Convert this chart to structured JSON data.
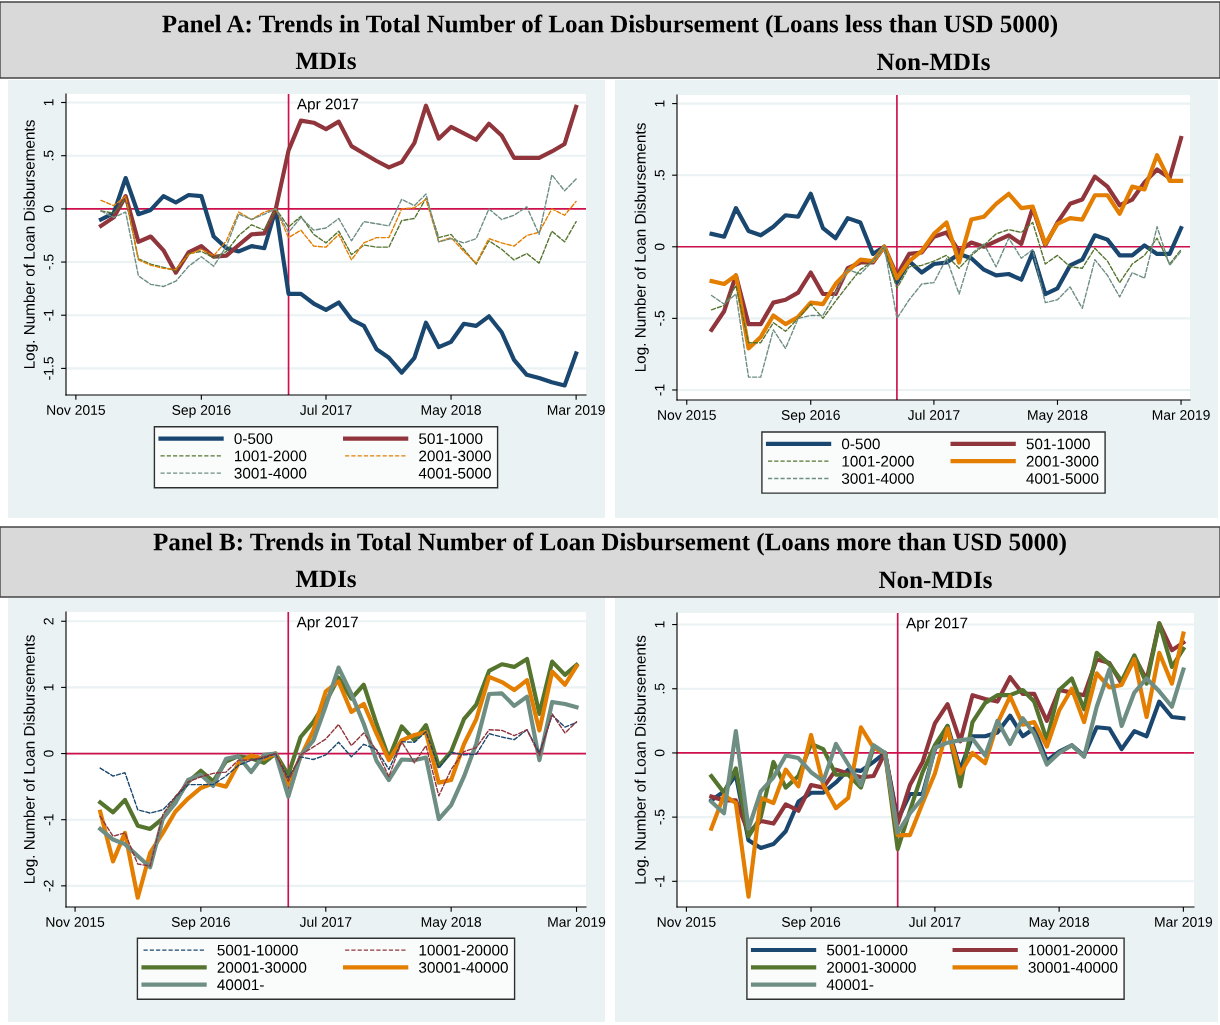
{
  "chart_data": [
    {
      "type": "line",
      "title": "MDIs",
      "ylabel": "Log. Number of Loan Disbursements",
      "annotations": [
        "Panel A: Trends in Total Number of Loan Disbursement (Loans less than USD 5000)"
      ],
      "x": [
        "2016-01",
        "2016-02",
        "2016-03",
        "2016-04",
        "2016-05",
        "2016-06",
        "2016-07",
        "2016-08",
        "2016-09",
        "2016-10",
        "2016-11",
        "2016-12",
        "2017-01",
        "2017-02",
        "2017-03",
        "2017-04",
        "2017-05",
        "2017-06",
        "2017-07",
        "2017-08",
        "2017-09",
        "2017-10",
        "2017-11",
        "2017-12",
        "2018-01",
        "2018-02",
        "2018-03",
        "2018-04",
        "2018-05",
        "2018-06",
        "2018-07",
        "2018-08",
        "2018-09",
        "2018-10",
        "2018-11",
        "2018-12",
        "2019-01",
        "2019-02",
        "2019-03"
      ],
      "xlim": [
        "2015-10-08",
        "2019-03-25"
      ],
      "xticks": [
        {
          "value": "2015-11",
          "label": "Nov 2015"
        },
        {
          "value": "2016-09",
          "label": "Sep 2016"
        },
        {
          "value": "2017-07",
          "label": "Jul 2017"
        },
        {
          "value": "2018-05",
          "label": "May 2018"
        },
        {
          "value": "2019-03",
          "label": "Mar 2019"
        }
      ],
      "ylim": [
        -1.75,
        1.08
      ],
      "yticks": [
        {
          "value": -1.5,
          "label": "-1.5"
        },
        {
          "value": -1,
          "label": "-1"
        },
        {
          "value": -0.5,
          "label": "-.5"
        },
        {
          "value": 0,
          "label": "0"
        },
        {
          "value": 0.5,
          "label": ".5"
        },
        {
          "value": 1,
          "label": "1"
        }
      ],
      "ref_lines": [
        {
          "axis": "y",
          "value": 0,
          "label": null,
          "color": "#d0104c"
        },
        {
          "axis": "x",
          "value": "2017-04",
          "label": "Apr 2017",
          "color": "#d0104c"
        }
      ],
      "grid": "y",
      "legend": "bottom",
      "series": [
        {
          "name": "0-500",
          "color": "#1a476f",
          "line_style": "solid",
          "values": [
            -0.1,
            -0.04,
            0.29,
            -0.05,
            -0.01,
            0.12,
            0.06,
            0.13,
            0.12,
            -0.26,
            -0.37,
            -0.4,
            -0.35,
            -0.37,
            0,
            -0.8,
            -0.8,
            -0.89,
            -0.95,
            -0.88,
            -1.04,
            -1.1,
            -1.32,
            -1.4,
            -1.54,
            -1.4,
            -1.07,
            -1.3,
            -1.25,
            -1.08,
            -1.1,
            -1.01,
            -1.16,
            -1.42,
            -1.56,
            -1.59,
            -1.63,
            -1.66,
            -1.36
          ]
        },
        {
          "name": "501-1000",
          "color": "#90353b",
          "line_style": "solid",
          "values": [
            -0.16,
            -0.08,
            0.12,
            -0.31,
            -0.26,
            -0.39,
            -0.6,
            -0.41,
            -0.35,
            -0.45,
            -0.44,
            -0.34,
            -0.24,
            -0.23,
            0,
            0.55,
            0.83,
            0.81,
            0.75,
            0.82,
            0.59,
            0.52,
            0.45,
            0.39,
            0.44,
            0.62,
            0.97,
            0.66,
            0.77,
            0.71,
            0.65,
            0.8,
            0.69,
            0.48,
            0.48,
            0.48,
            0.54,
            0.61,
            0.96
          ]
        },
        {
          "name": "1001-2000",
          "color": "#55752f",
          "line_style": "dashed",
          "values": [
            -0.02,
            -0.04,
            0.1,
            -0.47,
            -0.52,
            -0.55,
            -0.58,
            -0.42,
            -0.4,
            -0.46,
            -0.4,
            -0.25,
            -0.15,
            -0.2,
            0,
            -0.17,
            -0.07,
            -0.24,
            -0.32,
            -0.21,
            -0.43,
            -0.34,
            -0.36,
            -0.36,
            -0.11,
            -0.09,
            0.1,
            -0.27,
            -0.24,
            -0.38,
            -0.52,
            -0.3,
            -0.38,
            -0.48,
            -0.42,
            -0.51,
            -0.21,
            -0.31,
            -0.12
          ]
        },
        {
          "name": "2001-3000",
          "color": "#e37e00",
          "line_style": "dashed",
          "values": [
            0.08,
            0.03,
            0.12,
            -0.48,
            -0.53,
            -0.56,
            -0.57,
            -0.43,
            -0.38,
            -0.44,
            -0.3,
            -0.03,
            -0.1,
            -0.03,
            0,
            -0.27,
            -0.2,
            -0.35,
            -0.36,
            -0.24,
            -0.48,
            -0.32,
            -0.27,
            -0.27,
            0,
            0.01,
            0.09,
            -0.31,
            -0.27,
            -0.4,
            -0.51,
            -0.28,
            -0.32,
            -0.35,
            -0.25,
            -0.22,
            0,
            -0.06,
            0.07
          ]
        },
        {
          "name": "3001-4000",
          "color": "#6e8e84",
          "line_style": "dashed",
          "values": [
            -0.02,
            -0.08,
            -0.03,
            -0.63,
            -0.71,
            -0.73,
            -0.68,
            -0.54,
            -0.45,
            -0.54,
            -0.35,
            -0.05,
            -0.1,
            -0.05,
            0,
            -0.22,
            -0.08,
            -0.2,
            -0.18,
            -0.09,
            -0.3,
            -0.12,
            -0.14,
            -0.16,
            0.09,
            0.03,
            0.14,
            -0.31,
            -0.28,
            -0.32,
            -0.28,
            0,
            -0.1,
            -0.06,
            0.02,
            -0.24,
            0.32,
            0.17,
            0.28
          ]
        },
        {
          "name": "4001-5000",
          "line_style": "solid",
          "values": [
            null,
            null,
            null,
            null,
            null,
            null,
            null,
            null,
            null,
            null,
            null,
            null,
            null,
            null,
            null,
            null,
            null,
            null,
            null,
            null,
            null,
            null,
            null,
            null,
            null,
            null,
            null,
            null,
            null,
            null,
            null,
            null,
            null,
            null,
            null,
            null,
            null,
            null,
            null
          ]
        }
      ]
    },
    {
      "type": "line",
      "title": "Non-MDIs",
      "ylabel": "Log. Number of Loan Disbursements",
      "x": [
        "2016-01",
        "2016-02",
        "2016-03",
        "2016-04",
        "2016-05",
        "2016-06",
        "2016-07",
        "2016-08",
        "2016-09",
        "2016-10",
        "2016-11",
        "2016-12",
        "2017-01",
        "2017-02",
        "2017-03",
        "2017-04",
        "2017-05",
        "2017-06",
        "2017-07",
        "2017-08",
        "2017-09",
        "2017-10",
        "2017-11",
        "2017-12",
        "2018-01",
        "2018-02",
        "2018-03",
        "2018-04",
        "2018-05",
        "2018-06",
        "2018-07",
        "2018-08",
        "2018-09",
        "2018-10",
        "2018-11",
        "2018-12",
        "2019-01",
        "2019-02",
        "2019-03"
      ],
      "xlim": [
        "2015-10-08",
        "2019-03-23"
      ],
      "xticks": [
        {
          "value": "2015-11",
          "label": "Nov 2015"
        },
        {
          "value": "2016-09",
          "label": "Sep 2016"
        },
        {
          "value": "2017-07",
          "label": "Jul 2017"
        },
        {
          "value": "2018-05",
          "label": "May 2018"
        },
        {
          "value": "2019-03",
          "label": "Mar 2019"
        }
      ],
      "ylim": [
        -1.07,
        1.06
      ],
      "yticks": [
        {
          "value": -1,
          "label": "-1"
        },
        {
          "value": -0.5,
          "label": "-.5"
        },
        {
          "value": 0,
          "label": "0"
        },
        {
          "value": 0.5,
          "label": ".5"
        },
        {
          "value": 1,
          "label": "1"
        }
      ],
      "ref_lines": [
        {
          "axis": "y",
          "value": 0,
          "label": null,
          "color": "#d0104c"
        },
        {
          "axis": "x",
          "value": "2017-04",
          "label": null,
          "color": "#d0104c"
        }
      ],
      "grid": "y",
      "legend": "bottom",
      "series": [
        {
          "name": "0-500",
          "color": "#1a476f",
          "line_style": "solid",
          "values": [
            0.09,
            0.07,
            0.27,
            0.11,
            0.08,
            0.14,
            0.22,
            0.21,
            0.37,
            0.13,
            0.06,
            0.2,
            0.17,
            -0.05,
            0,
            -0.25,
            -0.1,
            -0.18,
            -0.12,
            -0.11,
            -0.05,
            -0.08,
            -0.16,
            -0.2,
            -0.19,
            -0.23,
            -0.04,
            -0.33,
            -0.29,
            -0.13,
            -0.09,
            0.08,
            0.05,
            -0.06,
            -0.06,
            0.01,
            -0.05,
            -0.05,
            0.13
          ]
        },
        {
          "name": "501-1000",
          "color": "#90353b",
          "line_style": "solid",
          "values": [
            -0.58,
            -0.45,
            -0.2,
            -0.54,
            -0.54,
            -0.39,
            -0.37,
            -0.32,
            -0.18,
            -0.33,
            -0.33,
            -0.15,
            -0.11,
            -0.11,
            0,
            -0.2,
            -0.05,
            -0.04,
            0.07,
            0.1,
            -0.03,
            0.03,
            0,
            0.04,
            0.08,
            0.02,
            0.27,
            0.01,
            0.17,
            0.3,
            0.33,
            0.49,
            0.42,
            0.29,
            0.33,
            0.45,
            0.54,
            0.48,
            0.76
          ]
        },
        {
          "name": "1001-2000",
          "color": "#55752f",
          "line_style": "dashed",
          "values": [
            -0.44,
            -0.41,
            -0.27,
            -0.67,
            -0.67,
            -0.53,
            -0.59,
            -0.5,
            -0.4,
            -0.5,
            -0.38,
            -0.27,
            -0.16,
            -0.1,
            0,
            -0.29,
            -0.14,
            -0.13,
            -0.1,
            -0.06,
            -0.15,
            -0.06,
            0.01,
            0.09,
            0.12,
            0.1,
            0.17,
            -0.12,
            -0.06,
            -0.14,
            -0.15,
            -0.01,
            -0.1,
            -0.25,
            -0.12,
            -0.06,
            0.06,
            -0.12,
            -0.02
          ]
        },
        {
          "name": "2001-3000",
          "color": "#e37e00",
          "line_style": "solid",
          "values": [
            -0.24,
            -0.26,
            -0.2,
            -0.71,
            -0.63,
            -0.48,
            -0.54,
            -0.49,
            -0.39,
            -0.4,
            -0.26,
            -0.17,
            -0.09,
            -0.1,
            0,
            -0.22,
            -0.1,
            -0.03,
            0.09,
            0.17,
            -0.11,
            0.19,
            0.21,
            0.3,
            0.37,
            0.27,
            0.28,
            0.02,
            0.16,
            0.2,
            0.19,
            0.36,
            0.36,
            0.23,
            0.42,
            0.4,
            0.64,
            0.46,
            0.46
          ]
        },
        {
          "name": "3001-4000",
          "color": "#6e8e84",
          "line_style": "dashed",
          "values": [
            -0.34,
            -0.4,
            -0.33,
            -0.91,
            -0.91,
            -0.58,
            -0.71,
            -0.5,
            -0.48,
            -0.48,
            -0.32,
            -0.16,
            -0.19,
            -0.1,
            0,
            -0.5,
            -0.37,
            -0.26,
            -0.25,
            -0.08,
            -0.33,
            -0.05,
            0.02,
            -0.14,
            0.06,
            -0.08,
            -0.02,
            -0.39,
            -0.37,
            -0.28,
            -0.43,
            -0.09,
            -0.2,
            -0.35,
            -0.18,
            -0.22,
            0.14,
            -0.13,
            -0.03
          ]
        },
        {
          "name": "4001-5000",
          "line_style": "solid",
          "values": [
            null,
            null,
            null,
            null,
            null,
            null,
            null,
            null,
            null,
            null,
            null,
            null,
            null,
            null,
            null,
            null,
            null,
            null,
            null,
            null,
            null,
            null,
            null,
            null,
            null,
            null,
            null,
            null,
            null,
            null,
            null,
            null,
            null,
            null,
            null,
            null,
            null,
            null,
            null
          ]
        }
      ]
    },
    {
      "type": "line",
      "title": "MDIs",
      "ylabel": "Log. Number of Loan Disbursements",
      "annotations": [
        "Panel B: Trends in Total Number of Loan Disbursement (Loans more than USD 5000)"
      ],
      "x": [
        "2016-01",
        "2016-02",
        "2016-03",
        "2016-04",
        "2016-05",
        "2016-06",
        "2016-07",
        "2016-08",
        "2016-09",
        "2016-10",
        "2016-11",
        "2016-12",
        "2017-01",
        "2017-02",
        "2017-03",
        "2017-04",
        "2017-05",
        "2017-06",
        "2017-07",
        "2017-08",
        "2017-09",
        "2017-10",
        "2017-11",
        "2017-12",
        "2018-01",
        "2018-02",
        "2018-03",
        "2018-04",
        "2018-05",
        "2018-06",
        "2018-07",
        "2018-08",
        "2018-09",
        "2018-10",
        "2018-11",
        "2018-12",
        "2019-01",
        "2019-02",
        "2019-03"
      ],
      "xlim": [
        "2015-10-10",
        "2019-03-24"
      ],
      "xticks": [
        {
          "value": "2015-11",
          "label": "Nov 2015"
        },
        {
          "value": "2016-09",
          "label": "Sep 2016"
        },
        {
          "value": "2017-07",
          "label": "Jul 2017"
        },
        {
          "value": "2018-05",
          "label": "May 2018"
        },
        {
          "value": "2019-03",
          "label": "Mar 2019"
        }
      ],
      "ylim": [
        -2.32,
        2.14
      ],
      "yticks": [
        -2,
        -1,
        0,
        1,
        2
      ],
      "ref_lines": [
        {
          "axis": "y",
          "value": 0,
          "label": null,
          "color": "#d0104c"
        },
        {
          "axis": "x",
          "value": "2017-04",
          "label": "Apr 2017",
          "color": "#d0104c"
        }
      ],
      "grid": "y",
      "legend": "bottom",
      "series": [
        {
          "name": "5001-10000",
          "color": "#1a476f",
          "line_style": "dashed",
          "values": [
            -0.22,
            -0.34,
            -0.29,
            -0.85,
            -0.9,
            -0.85,
            -0.66,
            -0.47,
            -0.47,
            -0.47,
            -0.34,
            -0.18,
            -0.1,
            -0.07,
            0,
            -0.37,
            -0.05,
            -0.09,
            -0.02,
            0.17,
            -0.05,
            0.14,
            0.06,
            -0.24,
            0.18,
            0.17,
            0.33,
            -0.22,
            0.02,
            -0.02,
            -0.01,
            0.3,
            0.25,
            0.21,
            0.36,
            0.01,
            0.58,
            0.4,
            0.47
          ]
        },
        {
          "name": "10001-20000",
          "color": "#90353b",
          "line_style": "dashed",
          "values": [
            -0.95,
            -1.25,
            -1.2,
            -1.67,
            -1.7,
            -0.92,
            -0.65,
            -0.43,
            -0.35,
            -0.3,
            -0.28,
            -0.1,
            -0.1,
            -0.05,
            0,
            -0.42,
            -0.02,
            0.1,
            0.22,
            0.44,
            0.12,
            0.31,
            0.05,
            -0.35,
            0.18,
            -0.14,
            0.12,
            -0.64,
            -0.24,
            0.03,
            0.09,
            0.36,
            0.35,
            0.27,
            0.36,
            -0.03,
            0.6,
            0.31,
            0.48
          ]
        },
        {
          "name": "20001-30000",
          "color": "#55752f",
          "line_style": "solid",
          "values": [
            -0.74,
            -0.89,
            -0.7,
            -1.09,
            -1.14,
            -0.98,
            -0.72,
            -0.43,
            -0.26,
            -0.42,
            -0.12,
            -0.04,
            -0.07,
            -0.14,
            0,
            -0.32,
            0.25,
            0.48,
            0.78,
            1.15,
            0.83,
            1.04,
            0.45,
            -0.07,
            0.41,
            0.2,
            0.43,
            -0.19,
            0.03,
            0.52,
            0.74,
            1.25,
            1.35,
            1.31,
            1.43,
            0.6,
            1.39,
            1.19,
            1.34
          ]
        },
        {
          "name": "30001-40000",
          "color": "#e37e00",
          "line_style": "solid",
          "values": [
            -0.88,
            -1.63,
            -1.2,
            -2.18,
            -1.5,
            -1.2,
            -0.88,
            -0.68,
            -0.52,
            -0.45,
            -0.5,
            -0.15,
            -0.03,
            -0.08,
            0,
            -0.47,
            -0.05,
            0.35,
            0.94,
            1.09,
            0.63,
            0.75,
            0.3,
            -0.1,
            0.2,
            0.28,
            0.32,
            -0.44,
            -0.4,
            0.14,
            0.52,
            1.16,
            1.08,
            0.96,
            1.11,
            0.35,
            1.24,
            1.04,
            1.32
          ]
        },
        {
          "name": "40001-",
          "color": "#6e8e84",
          "line_style": "solid",
          "values": [
            -1.14,
            -1.3,
            -1.37,
            -1.55,
            -1.72,
            -0.98,
            -0.75,
            -0.4,
            -0.32,
            -0.49,
            -0.08,
            -0.04,
            -0.28,
            -0.02,
            0,
            -0.65,
            -0.03,
            0.2,
            0.72,
            1.3,
            0.9,
            0.45,
            -0.11,
            -0.4,
            -0.09,
            -0.1,
            -0.06,
            -0.99,
            -0.78,
            -0.35,
            0.15,
            0.9,
            0.91,
            0.72,
            0.86,
            -0.1,
            0.78,
            0.75,
            0.7
          ]
        }
      ]
    },
    {
      "type": "line",
      "title": "Non-MDIs",
      "ylabel": "Log. Number of Loan Disbursements",
      "x": [
        "2016-01",
        "2016-02",
        "2016-03",
        "2016-04",
        "2016-05",
        "2016-06",
        "2016-07",
        "2016-08",
        "2016-09",
        "2016-10",
        "2016-11",
        "2016-12",
        "2017-01",
        "2017-02",
        "2017-03",
        "2017-04",
        "2017-05",
        "2017-06",
        "2017-07",
        "2017-08",
        "2017-09",
        "2017-10",
        "2017-11",
        "2017-12",
        "2018-01",
        "2018-02",
        "2018-03",
        "2018-04",
        "2018-05",
        "2018-06",
        "2018-07",
        "2018-08",
        "2018-09",
        "2018-10",
        "2018-11",
        "2018-12",
        "2019-01",
        "2019-02",
        "2019-03"
      ],
      "xlim": [
        "2015-10-09",
        "2019-03-27"
      ],
      "xticks": [
        {
          "value": "2015-11",
          "label": "Nov 2015"
        },
        {
          "value": "2016-09",
          "label": "Sep 2016"
        },
        {
          "value": "2017-07",
          "label": "Jul 2017"
        },
        {
          "value": "2018-05",
          "label": "May 2018"
        },
        {
          "value": "2019-03",
          "label": "Mar 2019"
        }
      ],
      "ylim": [
        -1.2,
        1.09
      ],
      "yticks": [
        {
          "value": -1,
          "label": "-1"
        },
        {
          "value": -0.5,
          "label": "-.5"
        },
        {
          "value": 0,
          "label": "0"
        },
        {
          "value": 0.5,
          "label": ".5"
        },
        {
          "value": 1,
          "label": "1"
        }
      ],
      "ref_lines": [
        {
          "axis": "y",
          "value": 0,
          "label": null,
          "color": "#d0104c"
        },
        {
          "axis": "x",
          "value": "2017-04",
          "label": "Apr 2017",
          "color": "#d0104c"
        }
      ],
      "grid": "y",
      "legend": "bottom",
      "series": [
        {
          "name": "5001-10000",
          "color": "#1a476f",
          "line_style": "solid",
          "values": [
            -0.37,
            -0.3,
            -0.17,
            -0.68,
            -0.74,
            -0.71,
            -0.61,
            -0.38,
            -0.31,
            -0.31,
            -0.23,
            -0.13,
            -0.14,
            -0.07,
            0,
            -0.52,
            -0.32,
            -0.32,
            0.03,
            0.21,
            -0.13,
            0.13,
            0.13,
            0.16,
            0.29,
            0.13,
            0.19,
            -0.06,
            0.01,
            0.06,
            -0.02,
            0.2,
            0.19,
            0.03,
            0.17,
            0.13,
            0.4,
            0.28,
            0.27
          ]
        },
        {
          "name": "10001-20000",
          "color": "#90353b",
          "line_style": "solid",
          "values": [
            -0.34,
            -0.37,
            -0.37,
            -0.62,
            -0.53,
            -0.55,
            -0.4,
            -0.45,
            -0.25,
            -0.27,
            -0.13,
            -0.16,
            -0.19,
            -0.18,
            0,
            -0.55,
            -0.25,
            -0.07,
            0.23,
            0.38,
            0.09,
            0.45,
            0.42,
            0.4,
            0.59,
            0.46,
            0.46,
            0.25,
            0.49,
            0.47,
            0.45,
            0.73,
            0.7,
            0.54,
            0.75,
            0.57,
            1.01,
            0.8,
            0.86
          ]
        },
        {
          "name": "20001-30000",
          "color": "#55752f",
          "line_style": "solid",
          "values": [
            -0.18,
            -0.31,
            -0.12,
            -0.65,
            -0.5,
            -0.07,
            -0.27,
            -0.18,
            0.07,
            0.03,
            -0.17,
            -0.17,
            -0.27,
            0.04,
            0,
            -0.75,
            -0.45,
            -0.15,
            0.06,
            0.21,
            -0.26,
            0.24,
            0.39,
            0.45,
            0.45,
            0.49,
            0.4,
            0.1,
            0.49,
            0.58,
            0.34,
            0.78,
            0.69,
            0.56,
            0.76,
            0.54,
            1.01,
            0.67,
            0.81
          ]
        },
        {
          "name": "30001-40000",
          "color": "#e37e00",
          "line_style": "solid",
          "values": [
            -0.59,
            -0.33,
            -0.39,
            -1.12,
            -0.35,
            -0.39,
            -0.13,
            -0.26,
            0.14,
            -0.25,
            -0.43,
            -0.35,
            0.2,
            0.04,
            0,
            -0.64,
            -0.64,
            -0.39,
            -0.16,
            0.19,
            -0.16,
            0,
            -0.08,
            0.23,
            0.44,
            0.22,
            0.24,
            0.05,
            0.33,
            0.5,
            0.24,
            0.62,
            0.51,
            0.53,
            0.73,
            0.28,
            0.78,
            0.54,
            0.93
          ]
        },
        {
          "name": "40001-",
          "color": "#6e8e84",
          "line_style": "solid",
          "values": [
            -0.38,
            -0.47,
            0.17,
            -0.59,
            -0.3,
            -0.19,
            -0.02,
            -0.04,
            -0.15,
            -0.22,
            0.07,
            -0.09,
            -0.25,
            0.06,
            0,
            -0.62,
            -0.47,
            -0.35,
            0.04,
            0.08,
            0.1,
            0.11,
            -0.02,
            0.25,
            0.07,
            0.27,
            0.15,
            -0.09,
            0,
            0.06,
            -0.03,
            0.36,
            0.65,
            0.21,
            0.47,
            0.58,
            0.48,
            0.36,
            0.65
          ]
        }
      ]
    }
  ]
}
